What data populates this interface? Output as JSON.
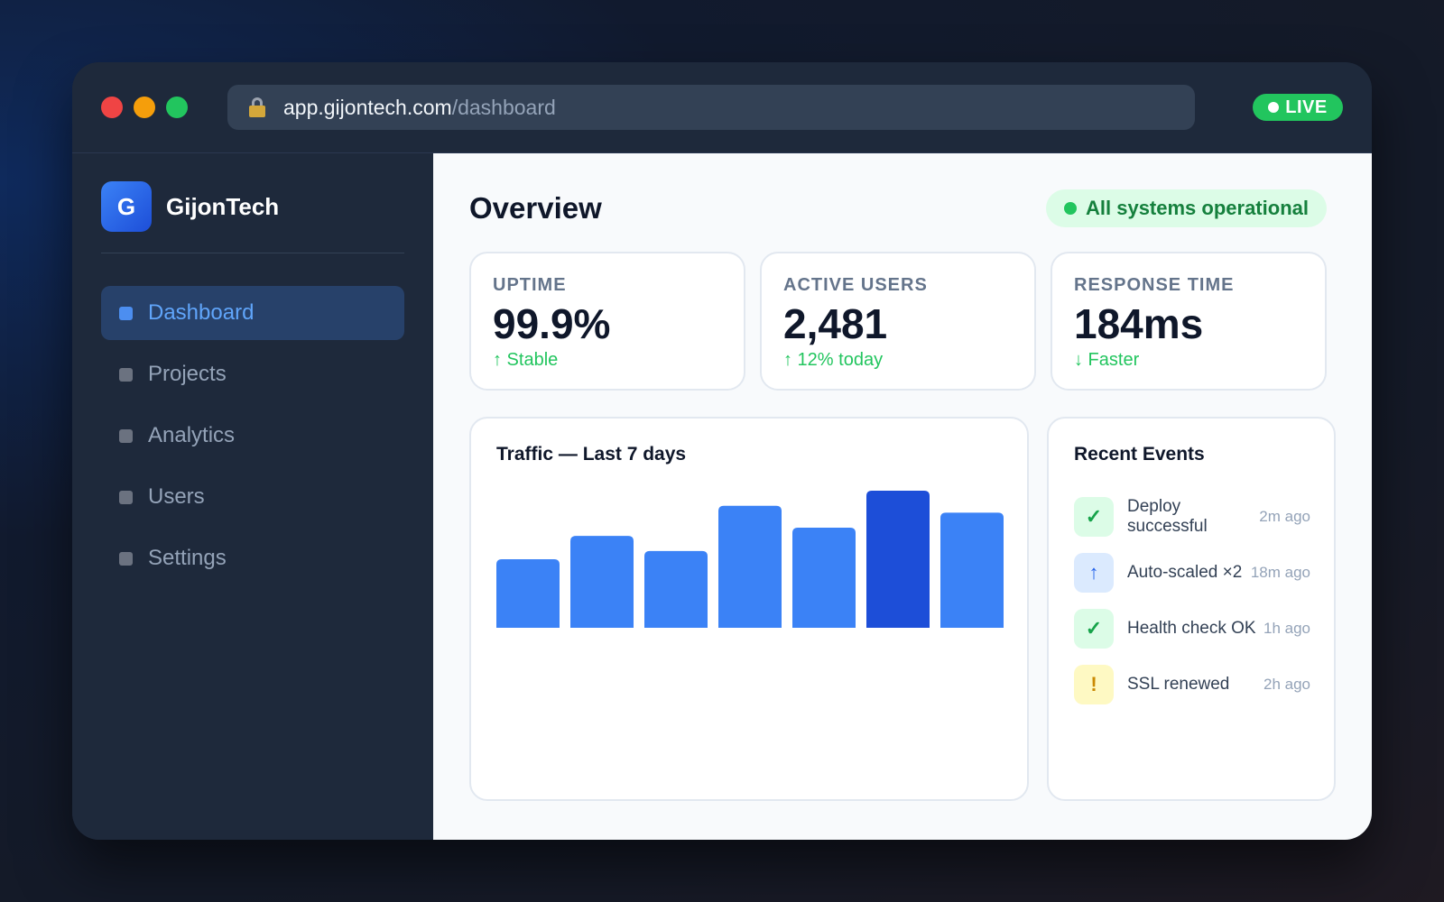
{
  "browser": {
    "url_host": "app.gijontech.com",
    "url_path": "/dashboard",
    "live_label": "LIVE"
  },
  "sidebar": {
    "logo_letter": "G",
    "brand": "GijonTech",
    "items": [
      {
        "label": "Dashboard",
        "active": true
      },
      {
        "label": "Projects",
        "active": false
      },
      {
        "label": "Analytics",
        "active": false
      },
      {
        "label": "Users",
        "active": false
      },
      {
        "label": "Settings",
        "active": false
      }
    ]
  },
  "main": {
    "title": "Overview",
    "status": "All systems operational",
    "stats": [
      {
        "label": "UPTIME",
        "value": "99.9%",
        "trend": "↑ Stable"
      },
      {
        "label": "ACTIVE USERS",
        "value": "2,481",
        "trend": "↑ 12% today"
      },
      {
        "label": "RESPONSE TIME",
        "value": "184ms",
        "trend": "↓ Faster"
      }
    ],
    "events_title": "Recent Events",
    "events": [
      {
        "icon": "check-icon",
        "glyph": "✓",
        "tone": "green",
        "text": "Deploy successful",
        "time": "2m ago"
      },
      {
        "icon": "arrow-up-icon",
        "glyph": "↑",
        "tone": "blue",
        "text": "Auto-scaled ×2",
        "time": "18m ago"
      },
      {
        "icon": "check-icon",
        "glyph": "✓",
        "tone": "green",
        "text": "Health check OK",
        "time": "1h ago"
      },
      {
        "icon": "warning-icon",
        "glyph": "!",
        "tone": "yellow",
        "text": "SSL renewed",
        "time": "2h ago"
      }
    ]
  },
  "colors": {
    "accent": "#3b82f6",
    "accent_highlight": "#1d4ed8",
    "success": "#22c55e"
  },
  "chart_data": {
    "type": "bar",
    "title": "Traffic — Last 7 days",
    "categories": [
      "",
      "",
      "",
      "",
      "",
      "",
      ""
    ],
    "values": [
      50,
      67,
      56,
      89,
      73,
      100,
      84
    ],
    "highlight_index": 5,
    "ylim": [
      0,
      100
    ],
    "grid": false,
    "xlabel": "",
    "ylabel": ""
  }
}
